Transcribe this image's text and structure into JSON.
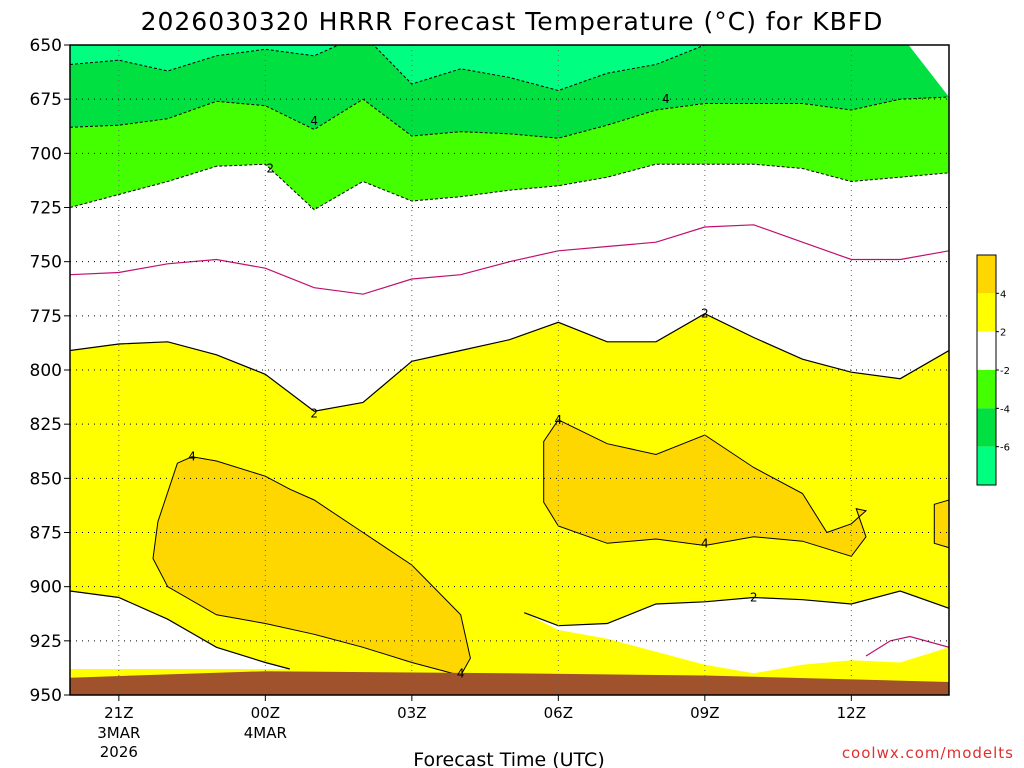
{
  "chart_data": {
    "type": "heatmap",
    "title": "2026030320 HRRR Forecast Temperature (°C) for KBFD",
    "xlabel": "Forecast Time (UTC)",
    "ylabel": "",
    "credit": "coolwx.com/modelts",
    "x_ticks": [
      {
        "hour": 0,
        "label": "21Z",
        "sub1": "3MAR",
        "sub2": "2026"
      },
      {
        "hour": 3,
        "label": "00Z",
        "sub1": "4MAR",
        "sub2": ""
      },
      {
        "hour": 6,
        "label": "03Z",
        "sub1": "",
        "sub2": ""
      },
      {
        "hour": 9,
        "label": "06Z",
        "sub1": "",
        "sub2": ""
      },
      {
        "hour": 12,
        "label": "09Z",
        "sub1": "",
        "sub2": ""
      },
      {
        "hour": 15,
        "label": "12Z",
        "sub1": "",
        "sub2": ""
      }
    ],
    "y_ticks": [
      650,
      675,
      700,
      725,
      750,
      775,
      800,
      825,
      850,
      875,
      900,
      925,
      950
    ],
    "xlim": [
      -1,
      17
    ],
    "ylim": [
      950,
      650
    ],
    "grid": true,
    "colorbar": {
      "ticks": [
        "4",
        "2",
        "-2",
        "-4",
        "-6"
      ],
      "bands": [
        {
          "from": 6,
          "to": 4,
          "color": "#ffd700"
        },
        {
          "from": 4,
          "to": 2,
          "color": "#ffff00"
        },
        {
          "from": 2,
          "to": -2,
          "color": "#ffffff"
        },
        {
          "from": -2,
          "to": -4,
          "color": "#44ff00"
        },
        {
          "from": -4,
          "to": -6,
          "color": "#00e040"
        },
        {
          "from": -6,
          "to": -8,
          "color": "#00ff80"
        }
      ]
    },
    "colors": {
      "cold6": "#00ff80",
      "cold4": "#00e040",
      "cold2": "#44ff00",
      "zero": "#ffffff",
      "warm2": "#ffff00",
      "warm4": "#ffd700",
      "ground": "#a0522d",
      "freezing_line": "#c0106e"
    },
    "isotherms": {
      "minus6": {
        "value": -6,
        "points": [
          [
            -1,
            659
          ],
          [
            0,
            657
          ],
          [
            1,
            662
          ],
          [
            2,
            655
          ],
          [
            3,
            652
          ],
          [
            4,
            655
          ],
          [
            5,
            645
          ],
          [
            6,
            668
          ],
          [
            7,
            661
          ],
          [
            8,
            665
          ],
          [
            9,
            671
          ],
          [
            10,
            663
          ],
          [
            11,
            659
          ],
          [
            12,
            650
          ],
          [
            13,
            650
          ],
          [
            14,
            645
          ],
          [
            15,
            650
          ],
          [
            16,
            645
          ]
        ]
      },
      "minus4": {
        "value": -4,
        "points": [
          [
            -1,
            688
          ],
          [
            0,
            687
          ],
          [
            1,
            684
          ],
          [
            2,
            676
          ],
          [
            3,
            678
          ],
          [
            4,
            689
          ],
          [
            5,
            675
          ],
          [
            6,
            692
          ],
          [
            7,
            690
          ],
          [
            8,
            691
          ],
          [
            9,
            693
          ],
          [
            10,
            687
          ],
          [
            11,
            680
          ],
          [
            12,
            677
          ],
          [
            13,
            677
          ],
          [
            14,
            677
          ],
          [
            15,
            680
          ],
          [
            16,
            675
          ],
          [
            17,
            674
          ]
        ]
      },
      "minus2": {
        "value": -2,
        "points": [
          [
            -1,
            725
          ],
          [
            0,
            719
          ],
          [
            1,
            713
          ],
          [
            2,
            706
          ],
          [
            3,
            705
          ],
          [
            4,
            726
          ],
          [
            5,
            713
          ],
          [
            6,
            722
          ],
          [
            7,
            720
          ],
          [
            8,
            717
          ],
          [
            9,
            715
          ],
          [
            10,
            711
          ],
          [
            11,
            705
          ],
          [
            12,
            705
          ],
          [
            13,
            705
          ],
          [
            14,
            707
          ],
          [
            15,
            713
          ],
          [
            16,
            711
          ],
          [
            17,
            709
          ]
        ]
      },
      "zero": {
        "value": 0,
        "points": [
          [
            -1,
            756
          ],
          [
            0,
            755
          ],
          [
            1,
            751
          ],
          [
            2,
            749
          ],
          [
            3,
            753
          ],
          [
            4,
            762
          ],
          [
            5,
            765
          ],
          [
            6,
            758
          ],
          [
            7,
            756
          ],
          [
            8,
            750
          ],
          [
            9,
            745
          ],
          [
            10,
            743
          ],
          [
            11,
            741
          ],
          [
            12,
            734
          ],
          [
            13,
            733
          ],
          [
            14,
            741
          ],
          [
            15,
            749
          ],
          [
            16,
            749
          ],
          [
            17,
            745
          ]
        ]
      },
      "plus2_upper": {
        "value": 2,
        "points": [
          [
            -1,
            791
          ],
          [
            0,
            788
          ],
          [
            1,
            787
          ],
          [
            2,
            793
          ],
          [
            3,
            802
          ],
          [
            4,
            819
          ],
          [
            5,
            815
          ],
          [
            6,
            796
          ],
          [
            7,
            791
          ],
          [
            8,
            786
          ],
          [
            9,
            778
          ],
          [
            10,
            787
          ],
          [
            11,
            787
          ],
          [
            12,
            774
          ],
          [
            13,
            785
          ],
          [
            14,
            795
          ],
          [
            15,
            801
          ],
          [
            16,
            804
          ],
          [
            17,
            791
          ]
        ]
      },
      "plus2_lower_left": {
        "value": 2,
        "points": [
          [
            -1,
            902
          ],
          [
            0,
            905
          ],
          [
            1,
            915
          ],
          [
            2,
            928
          ],
          [
            3,
            935
          ],
          [
            3.5,
            938
          ],
          [
            -1,
            938
          ]
        ]
      },
      "plus2_lower_right": {
        "value": 2,
        "points": [
          [
            8.3,
            912
          ],
          [
            9,
            918
          ],
          [
            10,
            917
          ],
          [
            11,
            908
          ],
          [
            12,
            907
          ],
          [
            13,
            905
          ],
          [
            14,
            906
          ],
          [
            15,
            908
          ],
          [
            16,
            902
          ],
          [
            17,
            910
          ]
        ]
      },
      "plus4_left": {
        "value": 4,
        "points": [
          [
            1.5,
            840
          ],
          [
            2,
            842
          ],
          [
            3,
            849
          ],
          [
            3.5,
            855
          ],
          [
            4,
            860
          ],
          [
            5,
            875
          ],
          [
            6,
            890
          ],
          [
            7,
            913
          ],
          [
            7.2,
            933
          ],
          [
            7,
            941
          ],
          [
            6,
            935
          ],
          [
            5,
            928
          ],
          [
            4,
            922
          ],
          [
            3,
            917
          ],
          [
            2,
            913
          ],
          [
            1,
            900
          ],
          [
            0.7,
            887
          ],
          [
            0.8,
            870
          ],
          [
            1.2,
            843
          ]
        ]
      },
      "plus4_right": {
        "value": 4,
        "points": [
          [
            9,
            823
          ],
          [
            10,
            834
          ],
          [
            11,
            839
          ],
          [
            12,
            830
          ],
          [
            13,
            845
          ],
          [
            14,
            857
          ],
          [
            14.5,
            875
          ],
          [
            15,
            871
          ],
          [
            15.3,
            865
          ],
          [
            15.1,
            864
          ],
          [
            15.3,
            877
          ],
          [
            15,
            886
          ],
          [
            14,
            879
          ],
          [
            13,
            877
          ],
          [
            12,
            881
          ],
          [
            11,
            878
          ],
          [
            10,
            880
          ],
          [
            9,
            872
          ],
          [
            8.7,
            861
          ],
          [
            8.7,
            833
          ]
        ]
      }
    }
  }
}
